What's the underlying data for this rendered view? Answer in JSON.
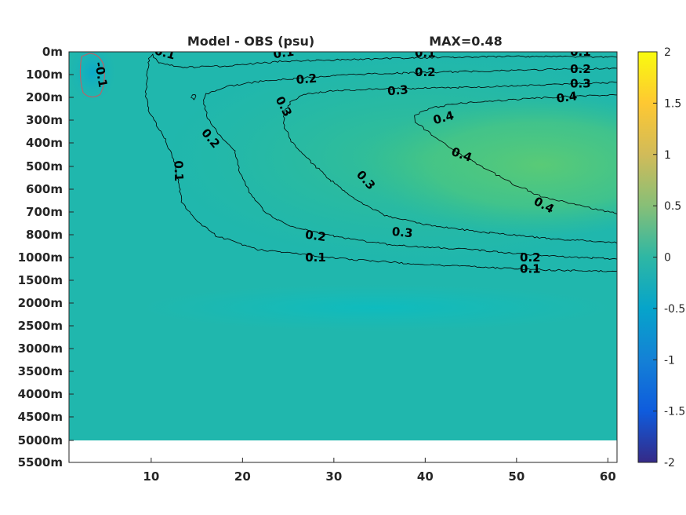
{
  "chart_data": {
    "type": "heatmap",
    "title": "Model - OBS (psu)",
    "subtitle": "MAX=0.48",
    "xlabel": "",
    "ylabel": "",
    "x_ticks": [
      "10",
      "20",
      "30",
      "40",
      "50",
      "60"
    ],
    "x_tick_values": [
      10,
      20,
      30,
      40,
      50,
      60
    ],
    "xlim": [
      1,
      61
    ],
    "y_ticks": [
      "0m",
      "100m",
      "200m",
      "300m",
      "400m",
      "500m",
      "600m",
      "700m",
      "800m",
      "1000m",
      "1500m",
      "2000m",
      "2500m",
      "3000m",
      "3500m",
      "4000m",
      "4500m",
      "5000m",
      "5500m"
    ],
    "y_depths": [
      0,
      100,
      200,
      300,
      400,
      500,
      600,
      700,
      800,
      1000,
      1500,
      2000,
      2500,
      3000,
      3500,
      4000,
      4500,
      5000,
      5500
    ],
    "colorbar": {
      "colormap": "parula",
      "range": [
        -2,
        2
      ],
      "ticks": [
        "2",
        "1.5",
        "1",
        "0.5",
        "0",
        "-0.5",
        "-1",
        "-1.5",
        "-2"
      ],
      "tick_values": [
        2,
        1.5,
        1,
        0.5,
        0,
        -0.5,
        -1,
        -1.5,
        -2
      ]
    },
    "contour_levels": [
      -0.1,
      0.1,
      0.2,
      0.3,
      0.4
    ],
    "contour_labels": [
      {
        "text": "0.1",
        "x": 11.5,
        "depth": 5,
        "rot": 15
      },
      {
        "text": "0.1",
        "x": 24.5,
        "depth": 5,
        "rot": -8
      },
      {
        "text": "0.1",
        "x": 40,
        "depth": 5,
        "rot": 0
      },
      {
        "text": "0.1",
        "x": 57,
        "depth": 0,
        "rot": 0
      },
      {
        "text": "0.2",
        "x": 27,
        "depth": 120,
        "rot": -5
      },
      {
        "text": "0.2",
        "x": 40,
        "depth": 90,
        "rot": 0
      },
      {
        "text": "0.2",
        "x": 57,
        "depth": 75,
        "rot": 0
      },
      {
        "text": "0.3",
        "x": 37,
        "depth": 170,
        "rot": -5
      },
      {
        "text": "0.3",
        "x": 57,
        "depth": 140,
        "rot": 0
      },
      {
        "text": "0.4",
        "x": 55.5,
        "depth": 200,
        "rot": -8
      },
      {
        "text": "0.3",
        "x": 24.5,
        "depth": 240,
        "rot": 62
      },
      {
        "text": "0.2",
        "x": 16.5,
        "depth": 380,
        "rot": 50
      },
      {
        "text": "0.1",
        "x": 13,
        "depth": 520,
        "rot": 88
      },
      {
        "text": "0.4",
        "x": 42,
        "depth": 290,
        "rot": -15
      },
      {
        "text": "0.4",
        "x": 44,
        "depth": 450,
        "rot": 20
      },
      {
        "text": "0.3",
        "x": 33.5,
        "depth": 560,
        "rot": 48
      },
      {
        "text": "0.4",
        "x": 53,
        "depth": 670,
        "rot": 28
      },
      {
        "text": "0.2",
        "x": 28,
        "depth": 810,
        "rot": 8
      },
      {
        "text": "0.3",
        "x": 37.5,
        "depth": 790,
        "rot": 5
      },
      {
        "text": "0.1",
        "x": 28,
        "depth": 1000,
        "rot": 0
      },
      {
        "text": "0.2",
        "x": 51.5,
        "depth": 1000,
        "rot": 0
      },
      {
        "text": "0.1",
        "x": 51.5,
        "depth": 1250,
        "rot": 0
      },
      {
        "text": "-0.1",
        "x": 4.5,
        "depth": 100,
        "rot": 80
      }
    ],
    "colors": {
      "field_base": "#20b7ad",
      "field_deep": "#11bfbb",
      "field_core": "#52c97a",
      "negative_contour": "#b5646a",
      "contour": "#000000",
      "missing": "#ffffff"
    }
  }
}
